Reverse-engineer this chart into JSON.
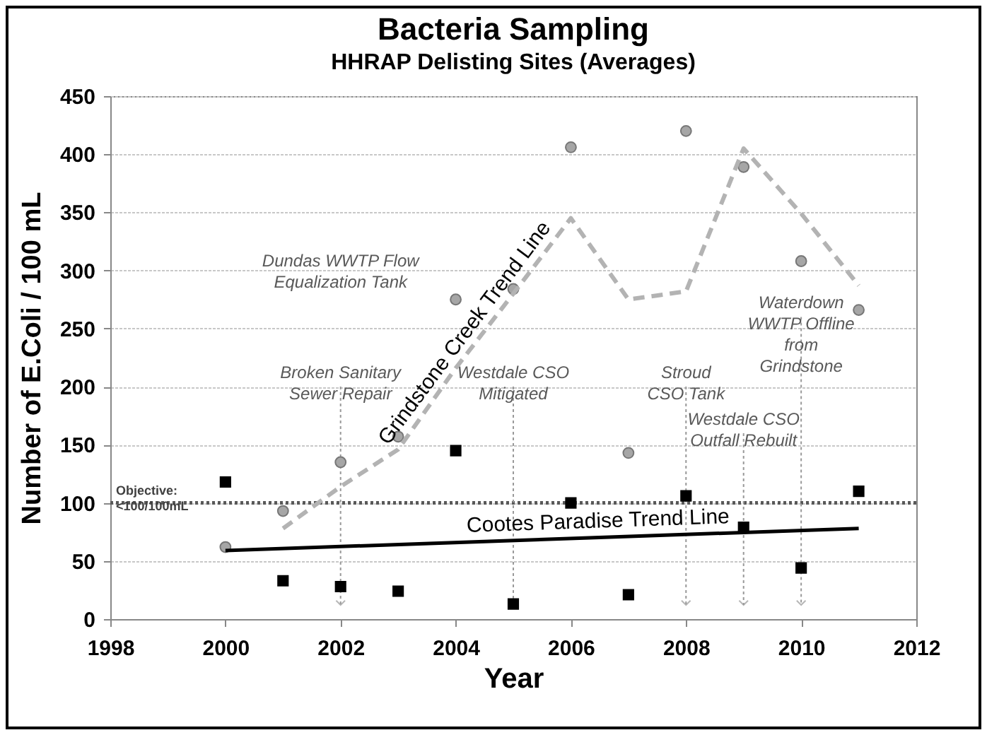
{
  "chart_data": {
    "type": "scatter",
    "title": "Bacteria Sampling",
    "subtitle": "HHRAP Delisting Sites (Averages)",
    "xlabel": "Year",
    "ylabel": "Number of E.Coli / 100 mL",
    "xlim": [
      1998,
      2012
    ],
    "xticks": [
      1998,
      2000,
      2002,
      2004,
      2006,
      2008,
      2010,
      2012
    ],
    "ylim": [
      0,
      450
    ],
    "yticks": [
      0,
      50,
      100,
      150,
      200,
      250,
      300,
      350,
      400,
      450
    ],
    "grid": "y",
    "series": [
      {
        "marker": "circle",
        "color": "#a6a6a6",
        "x": [
          2000,
          2001,
          2002,
          2003,
          2004,
          2005,
          2006,
          2007,
          2008,
          2009,
          2010,
          2011
        ],
        "values": [
          62,
          93,
          135,
          157,
          275,
          284,
          406,
          143,
          420,
          389,
          308,
          266
        ]
      },
      {
        "marker": "square",
        "color": "#000000",
        "x": [
          2000,
          2001,
          2002,
          2003,
          2004,
          2005,
          2006,
          2007,
          2008,
          2009,
          2010,
          2011
        ],
        "values": [
          118,
          33,
          28,
          24,
          145,
          13,
          100,
          21,
          106,
          79,
          44,
          110
        ]
      },
      {
        "type": "line",
        "name": "Grindstone Creek Trend Line",
        "line_style": "dashed",
        "color": "#b3b3b3",
        "x": [
          2001,
          2002,
          2003,
          2004,
          2005,
          2006,
          2007,
          2008,
          2009,
          2010,
          2011
        ],
        "values": [
          78,
          114,
          146,
          216,
          280,
          345,
          275,
          282,
          405,
          349,
          287
        ]
      },
      {
        "type": "line",
        "name": "Cootes Paradise Trend Line",
        "line_style": "solid",
        "color": "#000000",
        "x": [
          2000,
          2011
        ],
        "values": [
          59,
          78
        ]
      }
    ],
    "ref_lines": [
      {
        "axis": "y",
        "value": 100,
        "label": "Objective: <100/100mL",
        "color": "#595959",
        "line_style": "dotted"
      },
      {
        "axis": "x",
        "value": 2002,
        "label": "Broken Sanitary Sewer Repair",
        "color": "#999999",
        "line_style": "dotted"
      },
      {
        "axis": "x",
        "value": 2005,
        "label": "Westdale CSO Mitigated",
        "color": "#999999",
        "line_style": "dotted"
      },
      {
        "axis": "x",
        "value": 2008,
        "label": "Stroud CSO Tank",
        "color": "#999999",
        "line_style": "dotted"
      },
      {
        "axis": "x",
        "value": 2009,
        "label": "Westdale CSO Outfall Rebuilt",
        "color": "#999999",
        "line_style": "dotted"
      },
      {
        "axis": "x",
        "value": 2010,
        "label": "Waterdown WWTP Offline from Grindstone",
        "color": "#999999",
        "line_style": "dotted"
      }
    ],
    "annotations": [
      "Dundas WWTP Flow Equalization Tank"
    ]
  }
}
